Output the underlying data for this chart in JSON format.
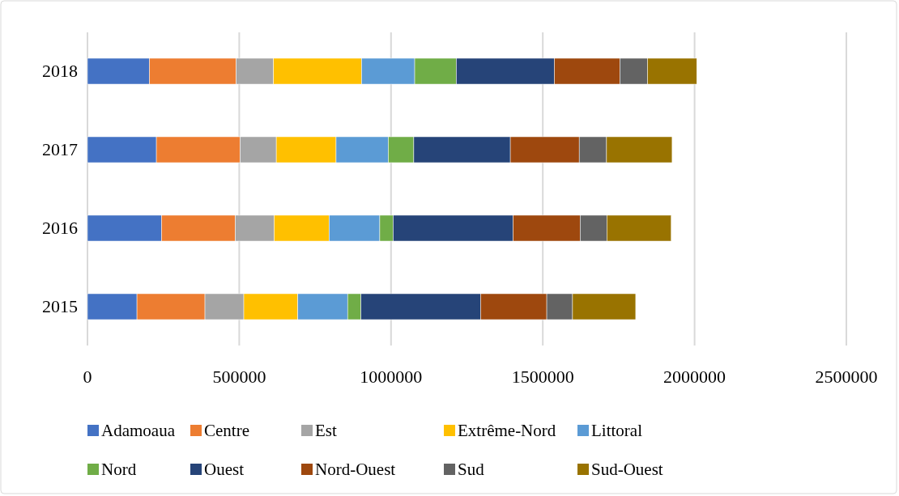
{
  "chart_data": {
    "type": "bar",
    "orientation": "horizontal",
    "stacked": true,
    "categories": [
      "2018",
      "2017",
      "2016",
      "2015"
    ],
    "series": [
      {
        "name": "Adamoaua",
        "color": "#4472c4",
        "values": [
          204000,
          227000,
          244000,
          163000
        ]
      },
      {
        "name": "Centre",
        "color": "#ed7d31",
        "values": [
          286000,
          276000,
          243000,
          224000
        ]
      },
      {
        "name": "Est",
        "color": "#a5a5a5",
        "values": [
          123000,
          119000,
          128000,
          128000
        ]
      },
      {
        "name": "Extrême-Nord",
        "color": "#ffc000",
        "values": [
          290000,
          197000,
          181000,
          178000
        ]
      },
      {
        "name": "Littoral",
        "color": "#5b9bd5",
        "values": [
          175000,
          172000,
          167000,
          164000
        ]
      },
      {
        "name": "Nord",
        "color": "#70ad47",
        "values": [
          137000,
          84000,
          44000,
          44000
        ]
      },
      {
        "name": "Ouest",
        "color": "#264478",
        "values": [
          323000,
          318000,
          395000,
          394000
        ]
      },
      {
        "name": "Nord-Ouest",
        "color": "#9e480e",
        "values": [
          216000,
          227000,
          221000,
          218000
        ]
      },
      {
        "name": "Sud",
        "color": "#636363",
        "values": [
          91000,
          90000,
          88000,
          85000
        ]
      },
      {
        "name": "Sud-Ouest",
        "color": "#997300",
        "values": [
          162000,
          216000,
          212000,
          208000
        ]
      }
    ],
    "xlim": [
      0,
      2500000
    ],
    "xticks": [
      0,
      500000,
      1000000,
      1500000,
      2000000,
      2500000
    ],
    "grid": "x",
    "legend": "bottom"
  }
}
